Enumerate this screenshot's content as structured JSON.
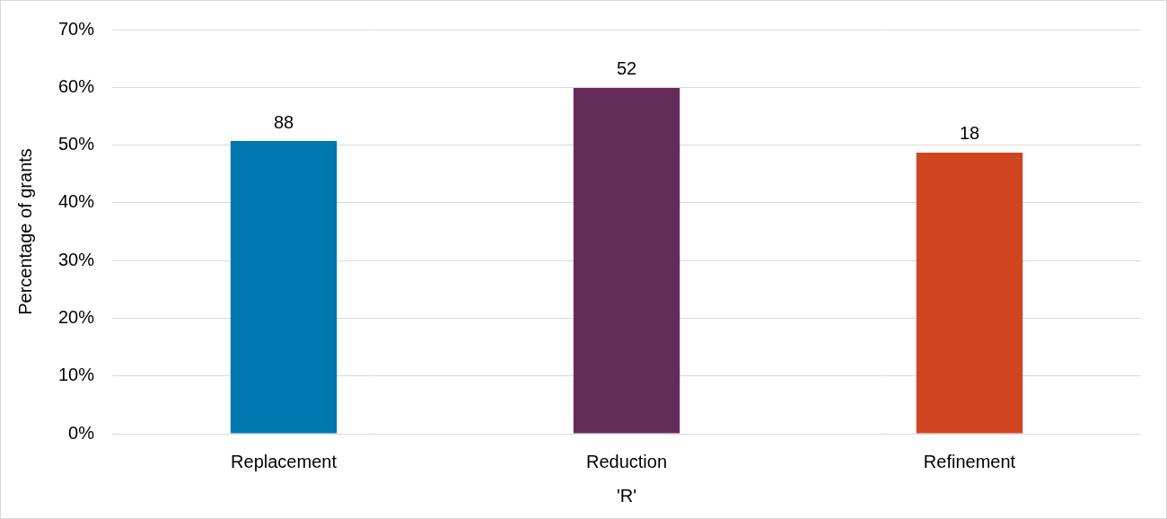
{
  "chart_data": {
    "type": "bar",
    "x_label": "'R'",
    "y_label": "Percentage of grants",
    "categories": [
      "Replacement",
      "Reduction",
      "Refinement"
    ],
    "values": [
      50.7,
      59.9,
      48.7
    ],
    "counts": [
      88,
      52,
      18
    ],
    "colors": [
      "#0076ae",
      "#632c5a",
      "#cf4520"
    ],
    "ylim": [
      0,
      70
    ],
    "yticks": [
      {
        "value": 0,
        "label": "0%"
      },
      {
        "value": 10,
        "label": "10%"
      },
      {
        "value": 20,
        "label": "20%"
      },
      {
        "value": 30,
        "label": "30%"
      },
      {
        "value": 40,
        "label": "40%"
      },
      {
        "value": 50,
        "label": "50%"
      },
      {
        "value": 60,
        "label": "60%"
      },
      {
        "value": 70,
        "label": "70%"
      }
    ],
    "grid": true
  }
}
